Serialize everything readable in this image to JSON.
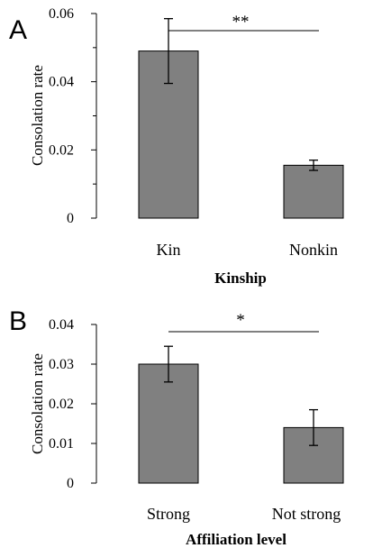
{
  "chart_data": [
    {
      "type": "bar",
      "panel": "A",
      "categories": [
        "Kin",
        "Nonkin"
      ],
      "values": [
        0.049,
        0.0155
      ],
      "error": [
        0.0095,
        0.0015
      ],
      "ylim": [
        0,
        0.06
      ],
      "yticks": [
        "0",
        "0.02",
        "0.04",
        "0.06"
      ],
      "ytick_values": [
        0,
        0.02,
        0.04,
        0.06
      ],
      "minor_ytick_values": [
        0.01,
        0.03,
        0.05
      ],
      "xlabel": "Kinship",
      "ylabel": "Consolation rate",
      "significance": "**",
      "bar_color": "#808080",
      "grid": false
    },
    {
      "type": "bar",
      "panel": "B",
      "categories": [
        "Strong",
        "Not strong"
      ],
      "values": [
        0.03,
        0.014
      ],
      "error": [
        0.0045,
        0.0045
      ],
      "ylim": [
        0,
        0.04
      ],
      "yticks": [
        "0",
        "0.01",
        "0.02",
        "0.03",
        "0.04"
      ],
      "ytick_values": [
        0,
        0.01,
        0.02,
        0.03,
        0.04
      ],
      "minor_ytick_values": [],
      "xlabel": "Affiliation level",
      "ylabel": "Consolation rate",
      "significance": "*",
      "bar_color": "#808080",
      "grid": false
    }
  ]
}
